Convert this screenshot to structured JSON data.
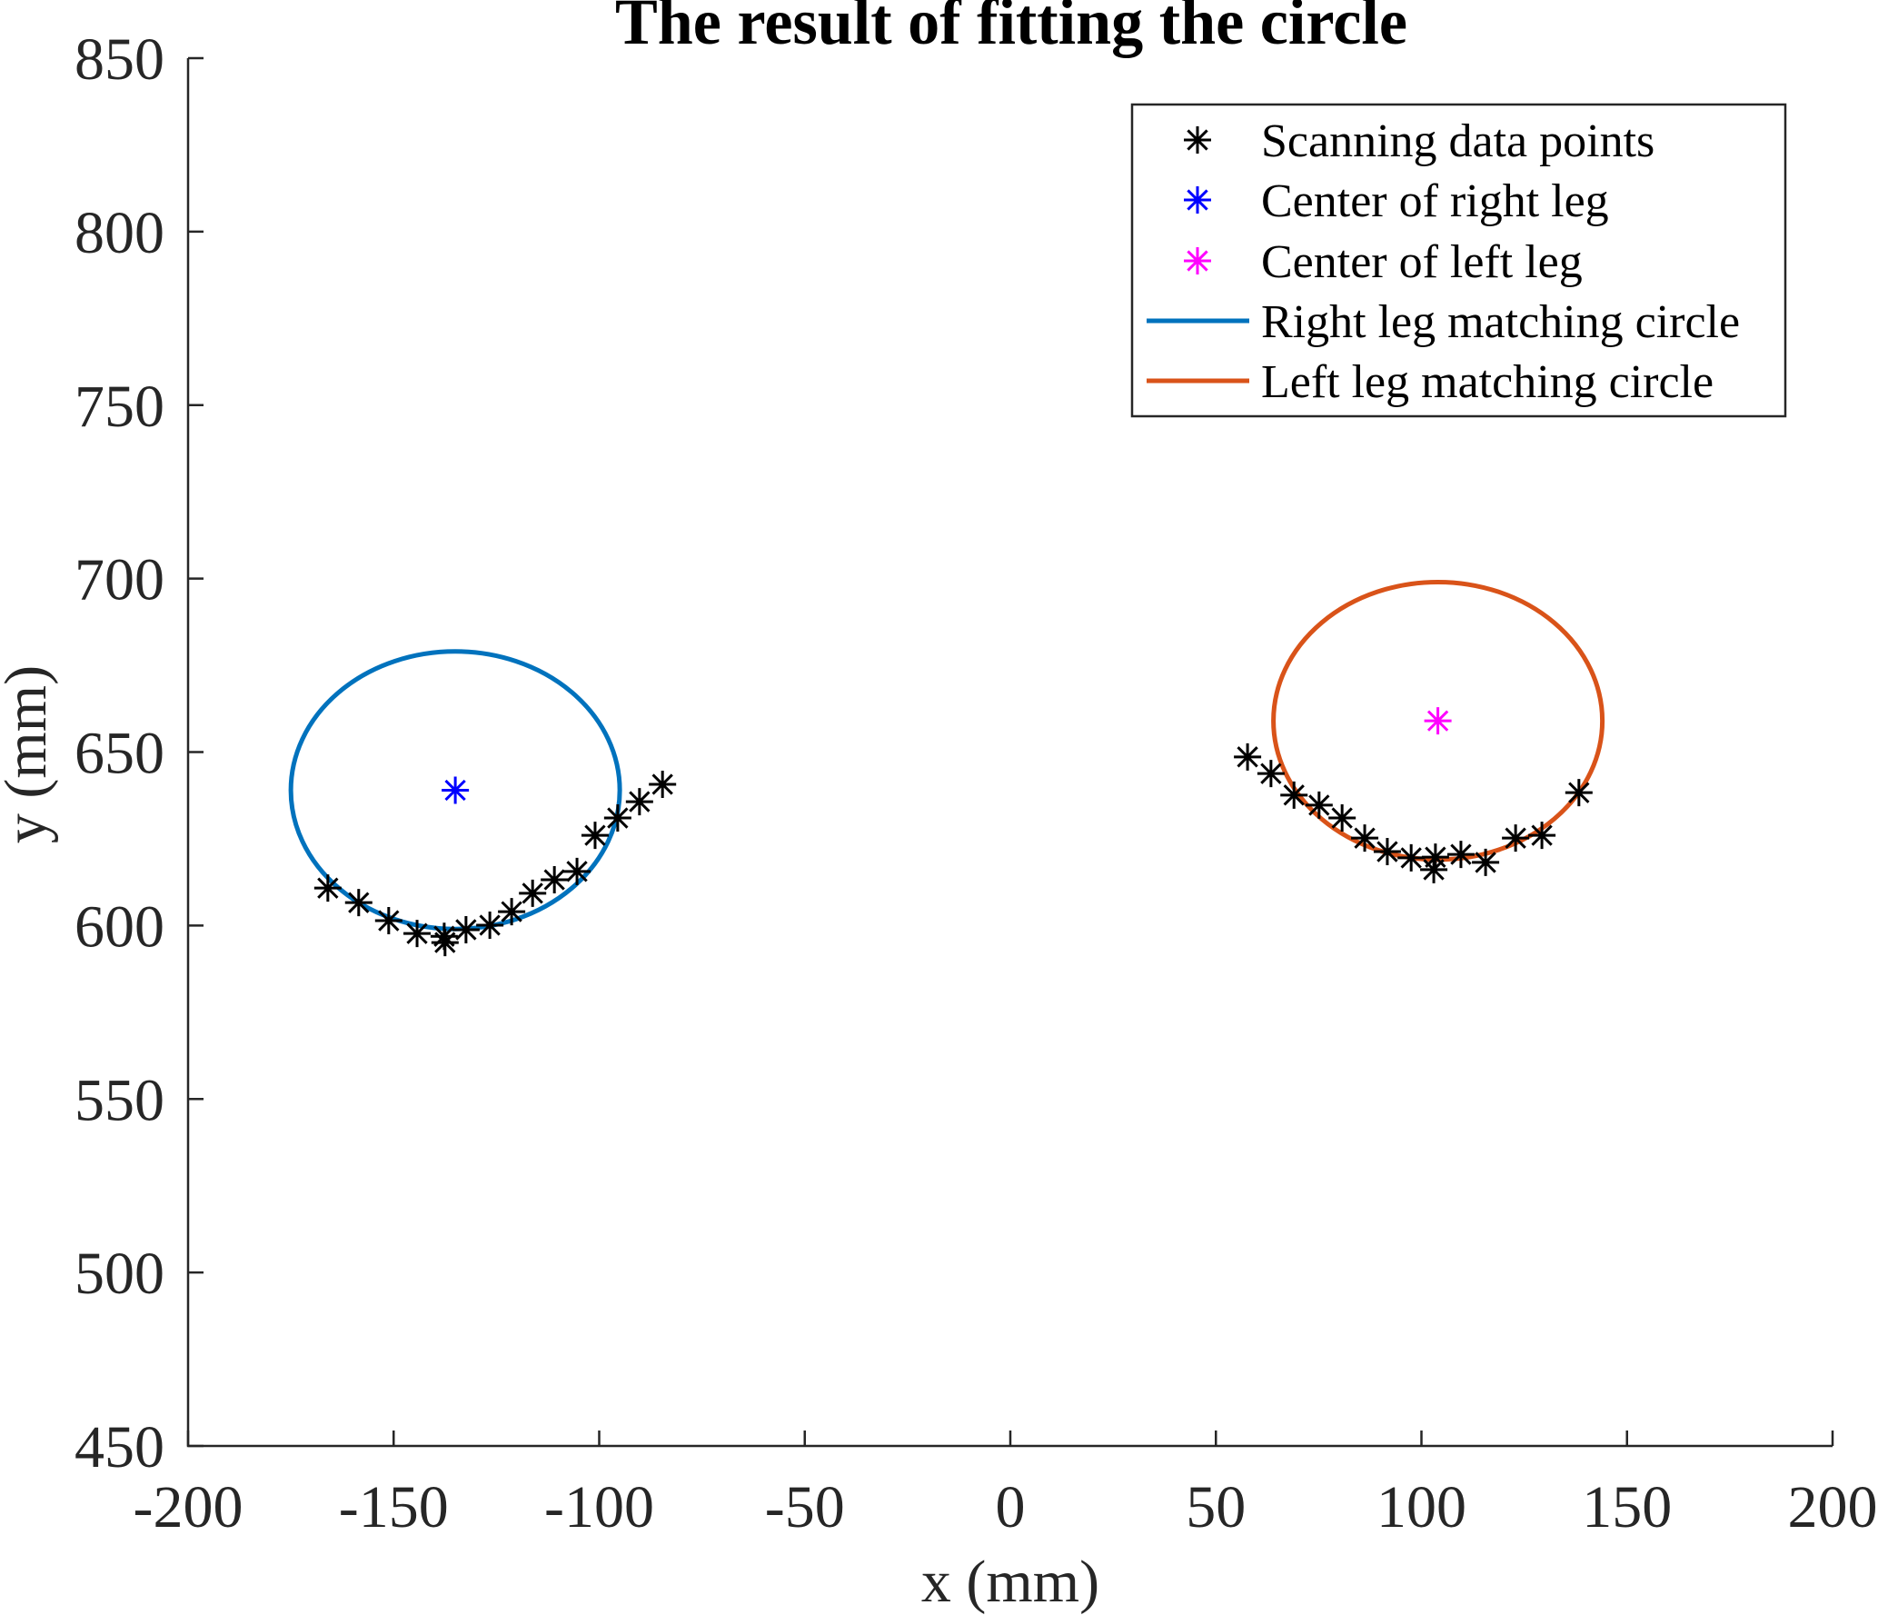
{
  "chart_data": {
    "type": "scatter",
    "title": "The result of fitting the circle",
    "xlabel": "x (mm)",
    "ylabel": "y (mm)",
    "xlim": [
      -200,
      200
    ],
    "ylim": [
      450,
      850
    ],
    "xticks": [
      -200,
      -150,
      -100,
      -50,
      0,
      50,
      100,
      150,
      200
    ],
    "xtick_labels": [
      "-200",
      "-150",
      "-100",
      "-50",
      "0",
      "50",
      "100",
      "150",
      "200"
    ],
    "yticks": [
      450,
      500,
      550,
      600,
      650,
      700,
      750,
      800,
      850
    ],
    "ytick_labels": [
      "450",
      "500",
      "550",
      "600",
      "650",
      "700",
      "750",
      "800",
      "850"
    ],
    "grid": false,
    "legend_position": "top-right",
    "legend": [
      {
        "label": "Scanning data points",
        "type": "marker",
        "marker": "asterisk",
        "color": "#000000"
      },
      {
        "label": "Center of right leg",
        "type": "marker",
        "marker": "asterisk",
        "color": "#0000ff"
      },
      {
        "label": "Center of left leg",
        "type": "marker",
        "marker": "asterisk",
        "color": "#ff00ff"
      },
      {
        "label": "Right leg matching circle",
        "type": "line",
        "color": "#0072bd"
      },
      {
        "label": "Left leg matching circle",
        "type": "line",
        "color": "#d95319"
      }
    ],
    "series": [
      {
        "name": "Scanning data points",
        "marker": "asterisk",
        "color": "#000000",
        "points": [
          [
            -166.0,
            610.8
          ],
          [
            -158.5,
            606.6
          ],
          [
            -151.2,
            601.4
          ],
          [
            -144.3,
            597.7
          ],
          [
            -137.7,
            596.9
          ],
          [
            -137.5,
            595.1
          ],
          [
            -132.4,
            598.8
          ],
          [
            -126.6,
            600.1
          ],
          [
            -121.3,
            604.0
          ],
          [
            -116.2,
            609.3
          ],
          [
            -110.9,
            613.2
          ],
          [
            -105.4,
            615.6
          ],
          [
            -101.0,
            626.0
          ],
          [
            -95.5,
            631.0
          ],
          [
            -90.2,
            635.7
          ],
          [
            -84.6,
            640.7
          ],
          [
            57.7,
            648.6
          ],
          [
            63.4,
            643.8
          ],
          [
            69.0,
            637.6
          ],
          [
            75.1,
            634.7
          ],
          [
            80.7,
            631.0
          ],
          [
            86.2,
            625.2
          ],
          [
            91.7,
            621.3
          ],
          [
            97.5,
            619.5
          ],
          [
            103.4,
            619.7
          ],
          [
            103.0,
            616.1
          ],
          [
            109.6,
            620.5
          ],
          [
            115.6,
            618.2
          ],
          [
            122.9,
            625.2
          ],
          [
            129.3,
            626.0
          ],
          [
            138.3,
            638.3
          ]
        ]
      },
      {
        "name": "Center of right leg",
        "marker": "asterisk",
        "color": "#0000ff",
        "points": [
          [
            -135,
            639
          ]
        ]
      },
      {
        "name": "Center of left leg",
        "marker": "asterisk",
        "color": "#ff00ff",
        "points": [
          [
            104,
            659
          ]
        ]
      }
    ],
    "circles": [
      {
        "name": "Right leg matching circle",
        "center": [
          -135,
          639
        ],
        "radius": 40,
        "color": "#0072bd"
      },
      {
        "name": "Left leg matching circle",
        "center": [
          104,
          659
        ],
        "radius": 40,
        "color": "#d95319"
      }
    ]
  }
}
